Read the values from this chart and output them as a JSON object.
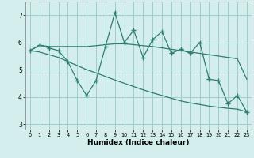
{
  "xlabel": "Humidex (Indice chaleur)",
  "x": [
    0,
    1,
    2,
    3,
    4,
    5,
    6,
    7,
    8,
    9,
    10,
    11,
    12,
    13,
    14,
    15,
    16,
    17,
    18,
    19,
    20,
    21,
    22,
    23
  ],
  "y_jagged": [
    5.7,
    5.9,
    5.8,
    5.7,
    5.3,
    4.6,
    4.05,
    4.6,
    5.85,
    7.1,
    6.0,
    6.45,
    5.45,
    6.1,
    6.4,
    5.6,
    5.75,
    5.6,
    6.0,
    4.65,
    4.6,
    3.75,
    4.05,
    3.45
  ],
  "y_upper": [
    5.7,
    5.9,
    5.85,
    5.85,
    5.85,
    5.85,
    5.85,
    5.88,
    5.92,
    5.95,
    5.95,
    5.92,
    5.88,
    5.85,
    5.8,
    5.75,
    5.7,
    5.65,
    5.6,
    5.55,
    5.5,
    5.45,
    5.4,
    4.65
  ],
  "y_lower": [
    5.7,
    5.65,
    5.55,
    5.45,
    5.3,
    5.15,
    5.0,
    4.88,
    4.75,
    4.62,
    4.5,
    4.38,
    4.26,
    4.15,
    4.05,
    3.95,
    3.85,
    3.78,
    3.72,
    3.66,
    3.62,
    3.58,
    3.55,
    3.45
  ],
  "line_color": "#2e7d6e",
  "bg_color": "#d4eeee",
  "grid_color": "#9ecece",
  "xlim": [
    -0.5,
    23.5
  ],
  "ylim": [
    2.8,
    7.5
  ],
  "yticks": [
    3,
    4,
    5,
    6,
    7
  ],
  "xticks": [
    0,
    1,
    2,
    3,
    4,
    5,
    6,
    7,
    8,
    9,
    10,
    11,
    12,
    13,
    14,
    15,
    16,
    17,
    18,
    19,
    20,
    21,
    22,
    23
  ]
}
